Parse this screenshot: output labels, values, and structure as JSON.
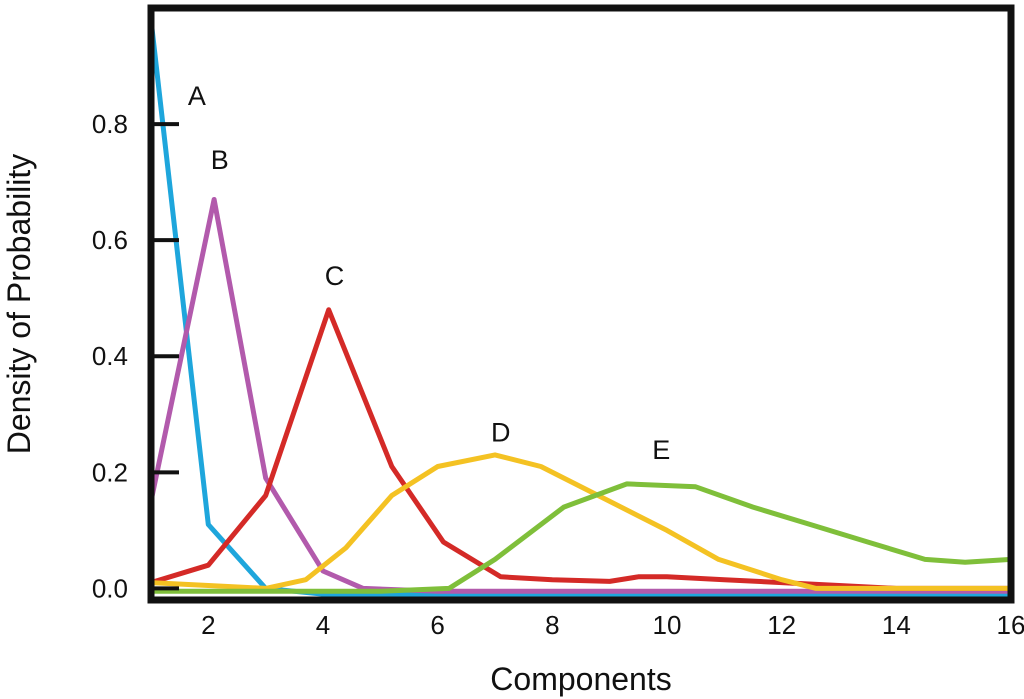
{
  "chart_data": {
    "type": "line",
    "title": "",
    "xlabel": "Components",
    "ylabel": "Density of Probability",
    "xlim": [
      1,
      16
    ],
    "ylim": [
      -0.02,
      1.0
    ],
    "x_ticks": [
      2,
      4,
      6,
      8,
      10,
      12,
      14,
      16
    ],
    "x_tick_labels": [
      "2",
      "4",
      "6",
      "8",
      "10",
      "12",
      "14",
      "16"
    ],
    "y_ticks": [
      0.0,
      0.2,
      0.4,
      0.6,
      0.8
    ],
    "y_tick_labels": [
      "0.0",
      "0.2",
      "0.4",
      "0.6",
      "0.8"
    ],
    "grid": false,
    "series": [
      {
        "name": "A",
        "color": "#1ea6dc",
        "x": [
          1,
          2,
          3,
          4,
          5,
          6,
          7,
          8,
          9,
          10,
          11,
          12,
          13,
          14,
          15,
          16
        ],
        "y": [
          0.98,
          0.11,
          0.0,
          -0.01,
          -0.01,
          -0.01,
          -0.01,
          -0.01,
          -0.01,
          -0.01,
          -0.01,
          -0.01,
          -0.01,
          -0.01,
          -0.01,
          -0.01
        ],
        "label_at": [
          1.8,
          0.85
        ]
      },
      {
        "name": "B",
        "color": "#b25aac",
        "x": [
          1,
          2.1,
          3,
          4,
          4.7,
          6,
          7,
          8,
          9,
          10,
          11,
          12,
          13,
          14,
          15,
          16
        ],
        "y": [
          0.15,
          0.67,
          0.19,
          0.03,
          0.0,
          -0.005,
          -0.005,
          -0.005,
          -0.005,
          -0.005,
          -0.005,
          -0.005,
          -0.005,
          -0.005,
          -0.005,
          -0.005
        ],
        "label_at": [
          2.2,
          0.74
        ]
      },
      {
        "name": "C",
        "color": "#d42a27",
        "x": [
          1,
          2,
          3,
          4.1,
          5.2,
          6.1,
          7.1,
          8,
          9,
          9.5,
          10,
          11,
          12,
          13,
          14,
          15,
          16
        ],
        "y": [
          0.01,
          0.04,
          0.16,
          0.48,
          0.21,
          0.08,
          0.02,
          0.015,
          0.012,
          0.02,
          0.02,
          0.015,
          0.01,
          0.005,
          0.0,
          0.0,
          0.0
        ],
        "label_at": [
          4.2,
          0.54
        ]
      },
      {
        "name": "D",
        "color": "#f4c223",
        "x": [
          1,
          2,
          3,
          3.7,
          4.4,
          5.2,
          6,
          7,
          7.8,
          8.8,
          10,
          10.9,
          12,
          12.6,
          14,
          15,
          16
        ],
        "y": [
          0.01,
          0.005,
          0.0,
          0.015,
          0.07,
          0.16,
          0.21,
          0.23,
          0.21,
          0.16,
          0.1,
          0.05,
          0.015,
          0.0,
          0.0,
          0.0,
          0.0
        ],
        "label_at": [
          7.1,
          0.27
        ]
      },
      {
        "name": "E",
        "color": "#7fbf3a",
        "x": [
          1,
          2,
          3,
          4,
          5,
          6.2,
          7,
          8.2,
          9.3,
          10.5,
          11.5,
          12.5,
          13.5,
          14.5,
          15.2,
          16
        ],
        "y": [
          -0.005,
          -0.005,
          -0.005,
          -0.005,
          -0.005,
          0.0,
          0.05,
          0.14,
          0.18,
          0.175,
          0.14,
          0.11,
          0.08,
          0.05,
          0.045,
          0.05
        ],
        "label_at": [
          9.9,
          0.24
        ]
      }
    ]
  }
}
